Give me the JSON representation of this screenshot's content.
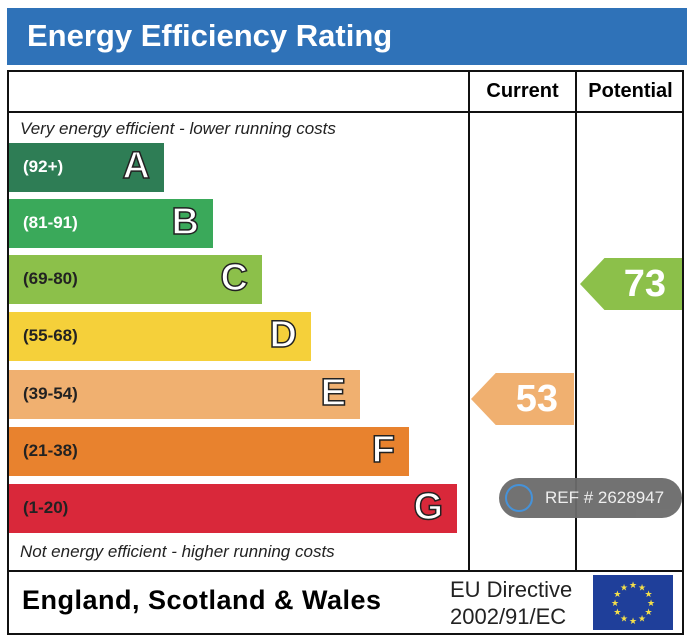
{
  "title": "Energy Efficiency Rating",
  "columns": {
    "current": "Current",
    "potential": "Potential"
  },
  "top_note": "Very energy efficient - lower running costs",
  "bottom_note": "Not energy efficient - higher running costs",
  "footer": {
    "region": "England, Scotland & Wales",
    "directive_line1": "EU Directive",
    "directive_line2": "2002/91/EC",
    "flag_icon": "eu-flag-icon"
  },
  "watermark": {
    "text": "REF # 2628947",
    "icon": "home-icon"
  },
  "chart_data": {
    "type": "bar",
    "title": "Energy Efficiency Rating",
    "categories": [
      "A",
      "B",
      "C",
      "D",
      "E",
      "F",
      "G"
    ],
    "ranges": [
      "(92+)",
      "(81-91)",
      "(69-80)",
      "(55-68)",
      "(39-54)",
      "(21-38)",
      "(1-20)"
    ],
    "colors": [
      "#2e7d55",
      "#3aa95a",
      "#8cc04a",
      "#f5d03a",
      "#f0b070",
      "#e8822e",
      "#d9283a"
    ],
    "range_text_colors": [
      "#ffffff",
      "#ffffff",
      "#222222",
      "#222222",
      "#222222",
      "#222222",
      "#222222"
    ],
    "current": {
      "value": 53,
      "band": "E",
      "color": "#f0b070"
    },
    "potential": {
      "value": 73,
      "band": "C",
      "color": "#8cc04a"
    }
  }
}
